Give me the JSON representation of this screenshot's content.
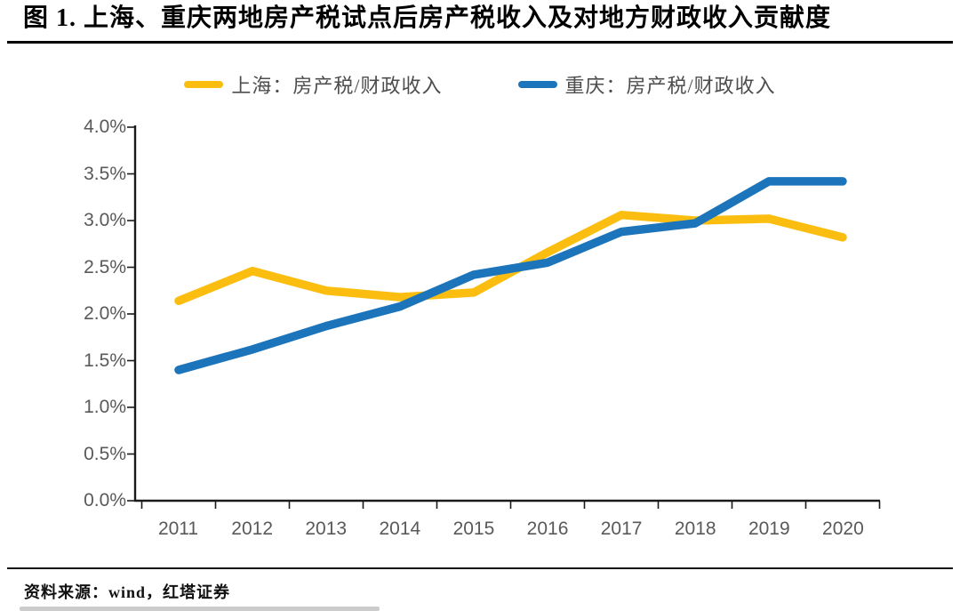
{
  "title": "图 1. 上海、重庆两地房产税试点后房产税收入及对地方财政收入贡献度",
  "source": "资料来源：wind，红塔证券",
  "legend": {
    "items": [
      {
        "label": "上海：房产税/财政收入",
        "color": "#FBBE10"
      },
      {
        "label": "重庆：房产税/财政收入",
        "color": "#1C74BB"
      }
    ]
  },
  "colors": {
    "shanghai_line": "#FBBE10",
    "chongqing_line": "#1C74BB",
    "axis": "#1a1a1a",
    "tick_label": "#595959"
  },
  "chart_data": {
    "type": "line",
    "title": "上海、重庆两地房产税试点后房产税收入及对地方财政收入贡献度",
    "categories": [
      "2011",
      "2012",
      "2013",
      "2014",
      "2015",
      "2016",
      "2017",
      "2018",
      "2019",
      "2020"
    ],
    "series": [
      {
        "name": "上海：房产税/财政收入",
        "color": "#FBBE10",
        "values": [
          2.14,
          2.46,
          2.25,
          2.18,
          2.23,
          2.66,
          3.06,
          3.0,
          3.02,
          2.82
        ]
      },
      {
        "name": "重庆：房产税/财政收入",
        "color": "#1C74BB",
        "values": [
          1.4,
          1.62,
          1.87,
          2.08,
          2.42,
          2.55,
          2.88,
          2.97,
          3.42,
          3.42
        ]
      }
    ],
    "xlabel": "",
    "ylabel": "",
    "ylim": [
      0,
      4
    ],
    "y_tick_step": 0.5,
    "y_tick_labels_top_to_bottom": [
      "4.0%",
      "3.5%",
      "3.0%",
      "2.5%",
      "2.0%",
      "1.5%",
      "1.0%",
      "0.5%",
      "0.0%"
    ],
    "unit": "percent",
    "grid": false,
    "legend_position": "top"
  }
}
